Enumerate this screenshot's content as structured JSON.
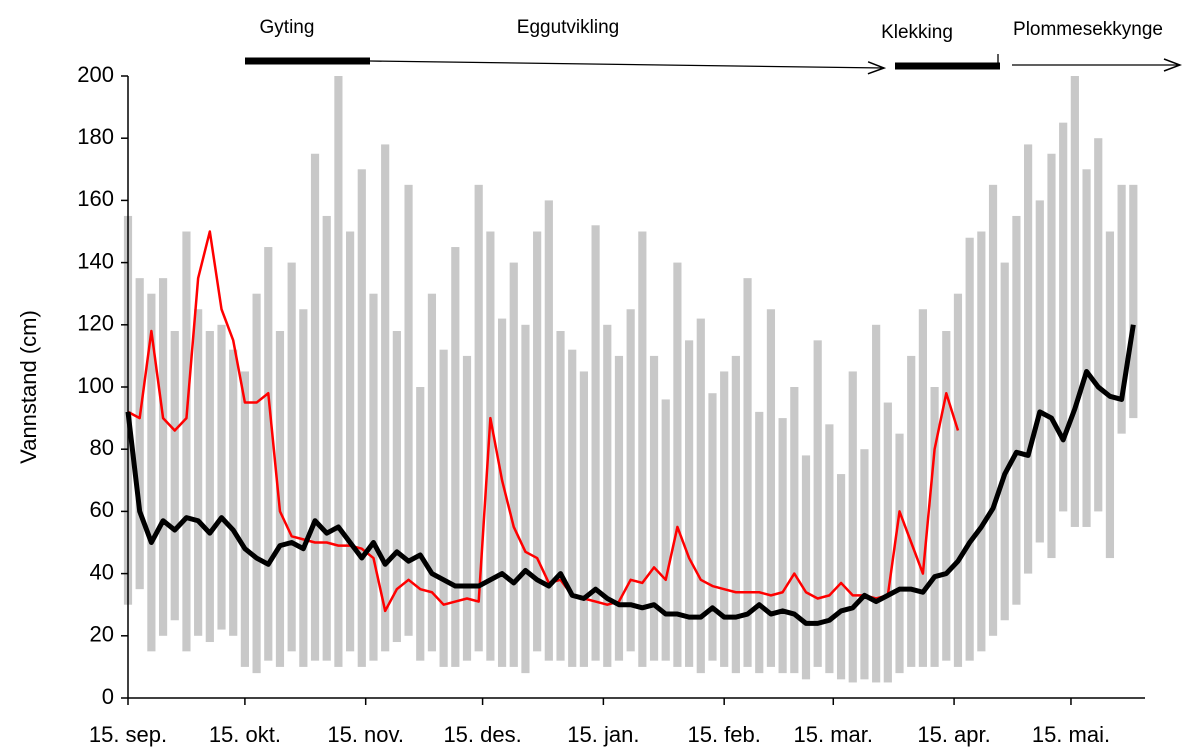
{
  "chart_data": {
    "type": "line",
    "y_label": "Vannstand (cm)",
    "annotations": [
      "Gyting",
      "Eggutvikling",
      "Klekking",
      "Plommesekkynge"
    ],
    "xlim": [
      0,
      261
    ],
    "xticks": [
      {
        "value": 0,
        "label": "15. sep."
      },
      {
        "value": 30,
        "label": "15. okt."
      },
      {
        "value": 61,
        "label": "15. nov."
      },
      {
        "value": 91,
        "label": "15. des."
      },
      {
        "value": 122,
        "label": "15. jan."
      },
      {
        "value": 153,
        "label": "15. feb."
      },
      {
        "value": 181,
        "label": "15. mar."
      },
      {
        "value": 212,
        "label": "15. apr."
      },
      {
        "value": 242,
        "label": "15. mai."
      }
    ],
    "ylim": [
      0,
      200
    ],
    "yticks": [
      0,
      20,
      40,
      60,
      80,
      100,
      120,
      140,
      160,
      180,
      200
    ],
    "x": [
      0,
      3,
      6,
      9,
      12,
      15,
      18,
      21,
      24,
      27,
      30,
      33,
      36,
      39,
      42,
      45,
      48,
      51,
      54,
      57,
      60,
      63,
      66,
      69,
      72,
      75,
      78,
      81,
      84,
      87,
      90,
      93,
      96,
      99,
      102,
      105,
      108,
      111,
      114,
      117,
      120,
      123,
      126,
      129,
      132,
      135,
      138,
      141,
      144,
      147,
      150,
      153,
      156,
      159,
      162,
      165,
      168,
      171,
      174,
      177,
      180,
      183,
      186,
      189,
      192,
      195,
      198,
      201,
      204,
      207,
      210,
      213,
      216,
      219,
      222,
      225,
      228,
      231,
      234,
      237,
      240,
      243,
      246,
      249,
      252,
      255,
      258
    ],
    "series": [
      {
        "type": "range",
        "color": "#c8c8c8",
        "high": [
          155,
          135,
          130,
          135,
          118,
          150,
          125,
          118,
          120,
          112,
          105,
          130,
          145,
          118,
          140,
          125,
          175,
          155,
          200,
          150,
          170,
          130,
          178,
          118,
          165,
          100,
          130,
          112,
          145,
          110,
          165,
          150,
          122,
          140,
          120,
          150,
          160,
          118,
          112,
          105,
          152,
          120,
          110,
          125,
          150,
          110,
          96,
          140,
          115,
          122,
          98,
          105,
          110,
          135,
          92,
          125,
          90,
          100,
          78,
          115,
          88,
          72,
          105,
          80,
          120,
          95,
          85,
          110,
          125,
          100,
          118,
          130,
          148,
          150,
          165,
          140,
          155,
          178,
          160,
          175,
          185,
          200,
          170,
          180,
          150,
          165,
          165
        ],
        "low": [
          30,
          35,
          15,
          20,
          25,
          15,
          20,
          18,
          22,
          20,
          10,
          8,
          12,
          10,
          15,
          10,
          12,
          12,
          10,
          15,
          10,
          12,
          15,
          18,
          20,
          12,
          15,
          10,
          10,
          12,
          15,
          12,
          10,
          10,
          8,
          15,
          12,
          12,
          10,
          10,
          12,
          10,
          12,
          15,
          10,
          12,
          12,
          10,
          10,
          8,
          12,
          10,
          8,
          10,
          8,
          10,
          8,
          8,
          6,
          10,
          8,
          6,
          5,
          6,
          5,
          5,
          8,
          10,
          10,
          10,
          12,
          10,
          12,
          15,
          20,
          25,
          30,
          40,
          50,
          45,
          60,
          55,
          55,
          60,
          45,
          85,
          90
        ]
      },
      {
        "type": "line",
        "color": "#ff0000",
        "values": [
          92,
          90,
          118,
          90,
          86,
          90,
          135,
          150,
          125,
          115,
          95,
          95,
          98,
          60,
          52,
          51,
          50,
          50,
          49,
          49,
          48,
          45,
          28,
          35,
          38,
          35,
          34,
          30,
          31,
          32,
          31,
          90,
          70,
          55,
          47,
          45,
          37,
          38,
          33,
          32,
          31,
          30,
          31,
          38,
          37,
          42,
          38,
          55,
          45,
          38,
          36,
          35,
          34,
          34,
          34,
          33,
          34,
          40,
          34,
          32,
          33,
          37,
          33,
          33,
          32,
          33,
          60,
          50,
          40,
          80,
          98,
          86,
          null,
          null,
          null,
          null,
          null,
          null,
          null,
          null,
          null,
          null,
          null,
          null,
          null,
          null,
          null
        ]
      },
      {
        "type": "line",
        "color": "#000000",
        "values": [
          92,
          60,
          50,
          57,
          54,
          58,
          57,
          53,
          58,
          54,
          48,
          45,
          43,
          49,
          50,
          48,
          57,
          53,
          55,
          50,
          45,
          50,
          43,
          47,
          44,
          46,
          40,
          38,
          36,
          36,
          36,
          38,
          40,
          37,
          41,
          38,
          36,
          40,
          33,
          32,
          35,
          32,
          30,
          30,
          29,
          30,
          27,
          27,
          26,
          26,
          29,
          26,
          26,
          27,
          30,
          27,
          28,
          27,
          24,
          24,
          25,
          28,
          29,
          33,
          31,
          33,
          35,
          35,
          34,
          39,
          40,
          44,
          50,
          55,
          61,
          72,
          79,
          78,
          92,
          90,
          83,
          93,
          105,
          100,
          97,
          96,
          120
        ]
      }
    ]
  }
}
